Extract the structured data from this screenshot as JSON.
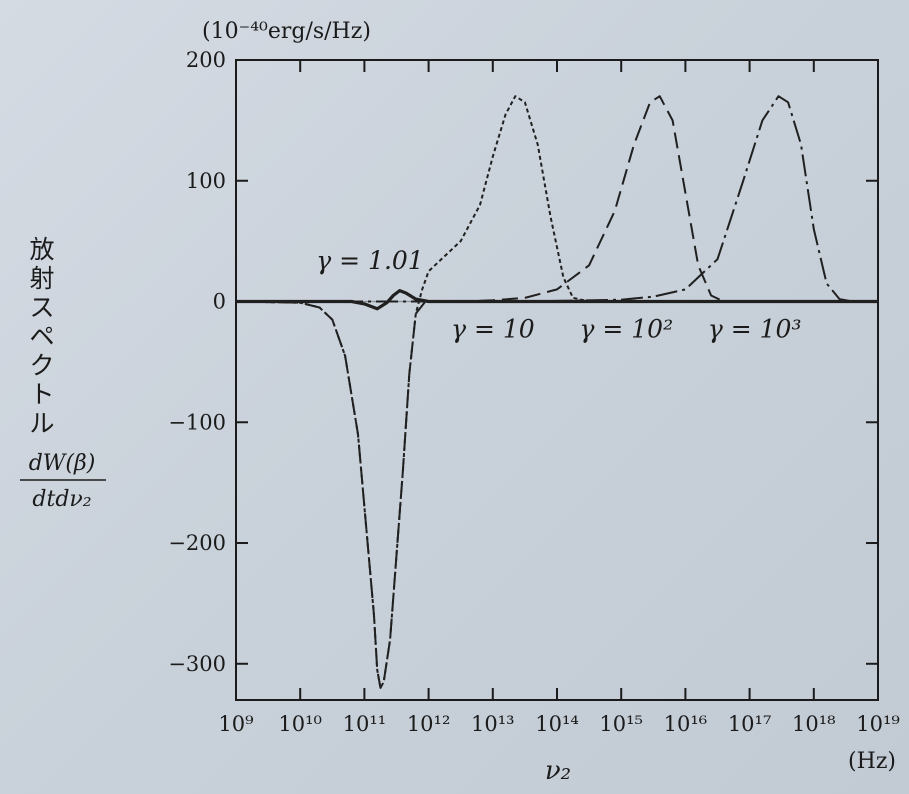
{
  "chart_data": {
    "type": "line",
    "y_unit_label": "(10⁻⁴⁰erg/s/Hz)",
    "ylabel_lines": [
      "放",
      "射",
      "ス",
      "ペ",
      "ク",
      "ト",
      "ル"
    ],
    "ylabel_formula_num": "dW(β)",
    "ylabel_formula_den": "dtdν₂",
    "xlabel": "ν₂",
    "x_unit": "(Hz)",
    "x_scale": "log",
    "xlim": [
      9,
      19
    ],
    "ylim": [
      -330,
      200
    ],
    "x_ticks": [
      9,
      10,
      11,
      12,
      13,
      14,
      15,
      16,
      17,
      18,
      19
    ],
    "x_tick_labels": [
      "10⁹",
      "10¹⁰",
      "10¹¹",
      "10¹²",
      "10¹³",
      "10¹⁴",
      "10¹⁵",
      "10¹⁶",
      "10¹⁷",
      "10¹⁸",
      "10¹⁹"
    ],
    "y_ticks": [
      200,
      100,
      0,
      -100,
      -200,
      -300
    ],
    "y_tick_labels": [
      "200",
      "100",
      "0",
      "−100",
      "−200",
      "−300"
    ],
    "grid": false,
    "series": [
      {
        "name": "γ = 1.01",
        "style": "solid",
        "points": [
          [
            9,
            0
          ],
          [
            10,
            0
          ],
          [
            10.8,
            0
          ],
          [
            11.0,
            -2
          ],
          [
            11.2,
            -6
          ],
          [
            11.35,
            -1
          ],
          [
            11.45,
            5
          ],
          [
            11.55,
            9
          ],
          [
            11.65,
            7
          ],
          [
            11.8,
            2
          ],
          [
            12,
            0
          ],
          [
            14,
            0
          ],
          [
            19,
            0
          ]
        ]
      },
      {
        "name": "γ = 10",
        "style": "short-dash",
        "points": [
          [
            9,
            0
          ],
          [
            10,
            -1
          ],
          [
            10.3,
            -5
          ],
          [
            10.5,
            -15
          ],
          [
            10.7,
            -45
          ],
          [
            10.9,
            -110
          ],
          [
            11.05,
            -200
          ],
          [
            11.15,
            -260
          ],
          [
            11.2,
            -305
          ],
          [
            11.25,
            -320
          ],
          [
            11.3,
            -315
          ],
          [
            11.4,
            -280
          ],
          [
            11.5,
            -210
          ],
          [
            11.6,
            -140
          ],
          [
            11.7,
            -60
          ],
          [
            11.8,
            -10
          ],
          [
            11.9,
            10
          ],
          [
            12.0,
            25
          ],
          [
            12.2,
            35
          ],
          [
            12.5,
            50
          ],
          [
            12.8,
            80
          ],
          [
            13.0,
            120
          ],
          [
            13.2,
            155
          ],
          [
            13.35,
            170
          ],
          [
            13.5,
            165
          ],
          [
            13.7,
            130
          ],
          [
            13.9,
            70
          ],
          [
            14.1,
            20
          ],
          [
            14.25,
            3
          ],
          [
            14.5,
            0
          ],
          [
            19,
            0
          ]
        ]
      },
      {
        "name": "γ = 10²",
        "style": "long-dash",
        "points": [
          [
            9,
            0
          ],
          [
            10,
            -1
          ],
          [
            10.3,
            -5
          ],
          [
            10.5,
            -15
          ],
          [
            10.7,
            -45
          ],
          [
            10.9,
            -110
          ],
          [
            11.05,
            -200
          ],
          [
            11.15,
            -260
          ],
          [
            11.2,
            -305
          ],
          [
            11.25,
            -320
          ],
          [
            11.3,
            -315
          ],
          [
            11.4,
            -280
          ],
          [
            11.5,
            -210
          ],
          [
            11.6,
            -140
          ],
          [
            11.7,
            -60
          ],
          [
            11.8,
            -10
          ],
          [
            11.95,
            0
          ],
          [
            12.5,
            0
          ],
          [
            13.0,
            1
          ],
          [
            13.5,
            3
          ],
          [
            14.0,
            10
          ],
          [
            14.5,
            30
          ],
          [
            14.9,
            75
          ],
          [
            15.2,
            130
          ],
          [
            15.45,
            165
          ],
          [
            15.6,
            170
          ],
          [
            15.8,
            150
          ],
          [
            16.0,
            90
          ],
          [
            16.2,
            30
          ],
          [
            16.4,
            5
          ],
          [
            16.6,
            0
          ],
          [
            19,
            0
          ]
        ]
      },
      {
        "name": "γ = 10³",
        "style": "dash-dot",
        "points": [
          [
            9,
            0
          ],
          [
            11.95,
            0
          ],
          [
            13,
            0
          ],
          [
            14,
            0.5
          ],
          [
            15,
            1.5
          ],
          [
            15.5,
            4
          ],
          [
            16.0,
            10
          ],
          [
            16.5,
            35
          ],
          [
            16.9,
            100
          ],
          [
            17.2,
            150
          ],
          [
            17.45,
            170
          ],
          [
            17.6,
            165
          ],
          [
            17.8,
            130
          ],
          [
            18.0,
            60
          ],
          [
            18.2,
            15
          ],
          [
            18.4,
            2
          ],
          [
            18.6,
            0
          ],
          [
            19,
            0
          ]
        ]
      }
    ],
    "annotations": [
      {
        "text": "γ = 1.01",
        "x": 10.25,
        "y": 27
      },
      {
        "text": "γ = 10",
        "x": 12.35,
        "y": -30
      },
      {
        "text": "γ = 10²",
        "x": 14.35,
        "y": -30
      },
      {
        "text": "γ = 10³",
        "x": 16.35,
        "y": -30
      }
    ]
  }
}
